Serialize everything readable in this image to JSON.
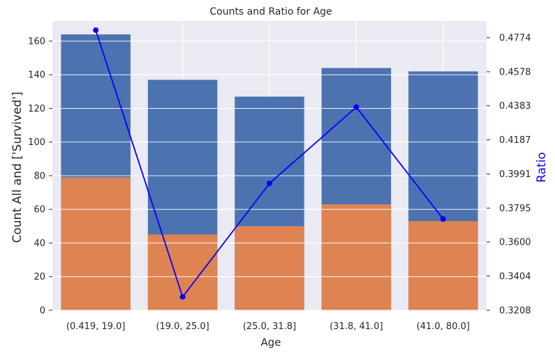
{
  "chart_data": {
    "type": "bar",
    "title": "Counts and Ratio for Age",
    "xlabel": "Age",
    "ylabel": "Count All and ['Survived']",
    "y2label": "Ratio",
    "categories": [
      "(0.419, 19.0]",
      "(19.0, 25.0]",
      "(25.0, 31.8]",
      "(31.8, 41.0]",
      "(41.0, 80.0]"
    ],
    "series": [
      {
        "values": [
          164,
          137,
          127,
          144,
          142
        ],
        "color": "#4c72b0",
        "axis": "left",
        "kind": "bar"
      },
      {
        "values": [
          79,
          45,
          50,
          63,
          53
        ],
        "color": "#dd8452",
        "axis": "left",
        "kind": "bar"
      },
      {
        "values": [
          0.4817,
          0.3285,
          0.3937,
          0.4375,
          0.3732
        ],
        "color": "#0000ff",
        "axis": "right",
        "kind": "line"
      }
    ],
    "ylim": [
      0,
      172
    ],
    "yticks": [
      0,
      20,
      40,
      60,
      80,
      100,
      120,
      140,
      160
    ],
    "y2lim": [
      0.3208,
      0.487
    ],
    "y2ticks": [
      "0.3208",
      "0.3404",
      "0.3600",
      "0.3795",
      "0.3991",
      "0.4187",
      "0.4383",
      "0.4578",
      "0.4774"
    ],
    "grid": true,
    "background_color": "#eaeaf2"
  }
}
